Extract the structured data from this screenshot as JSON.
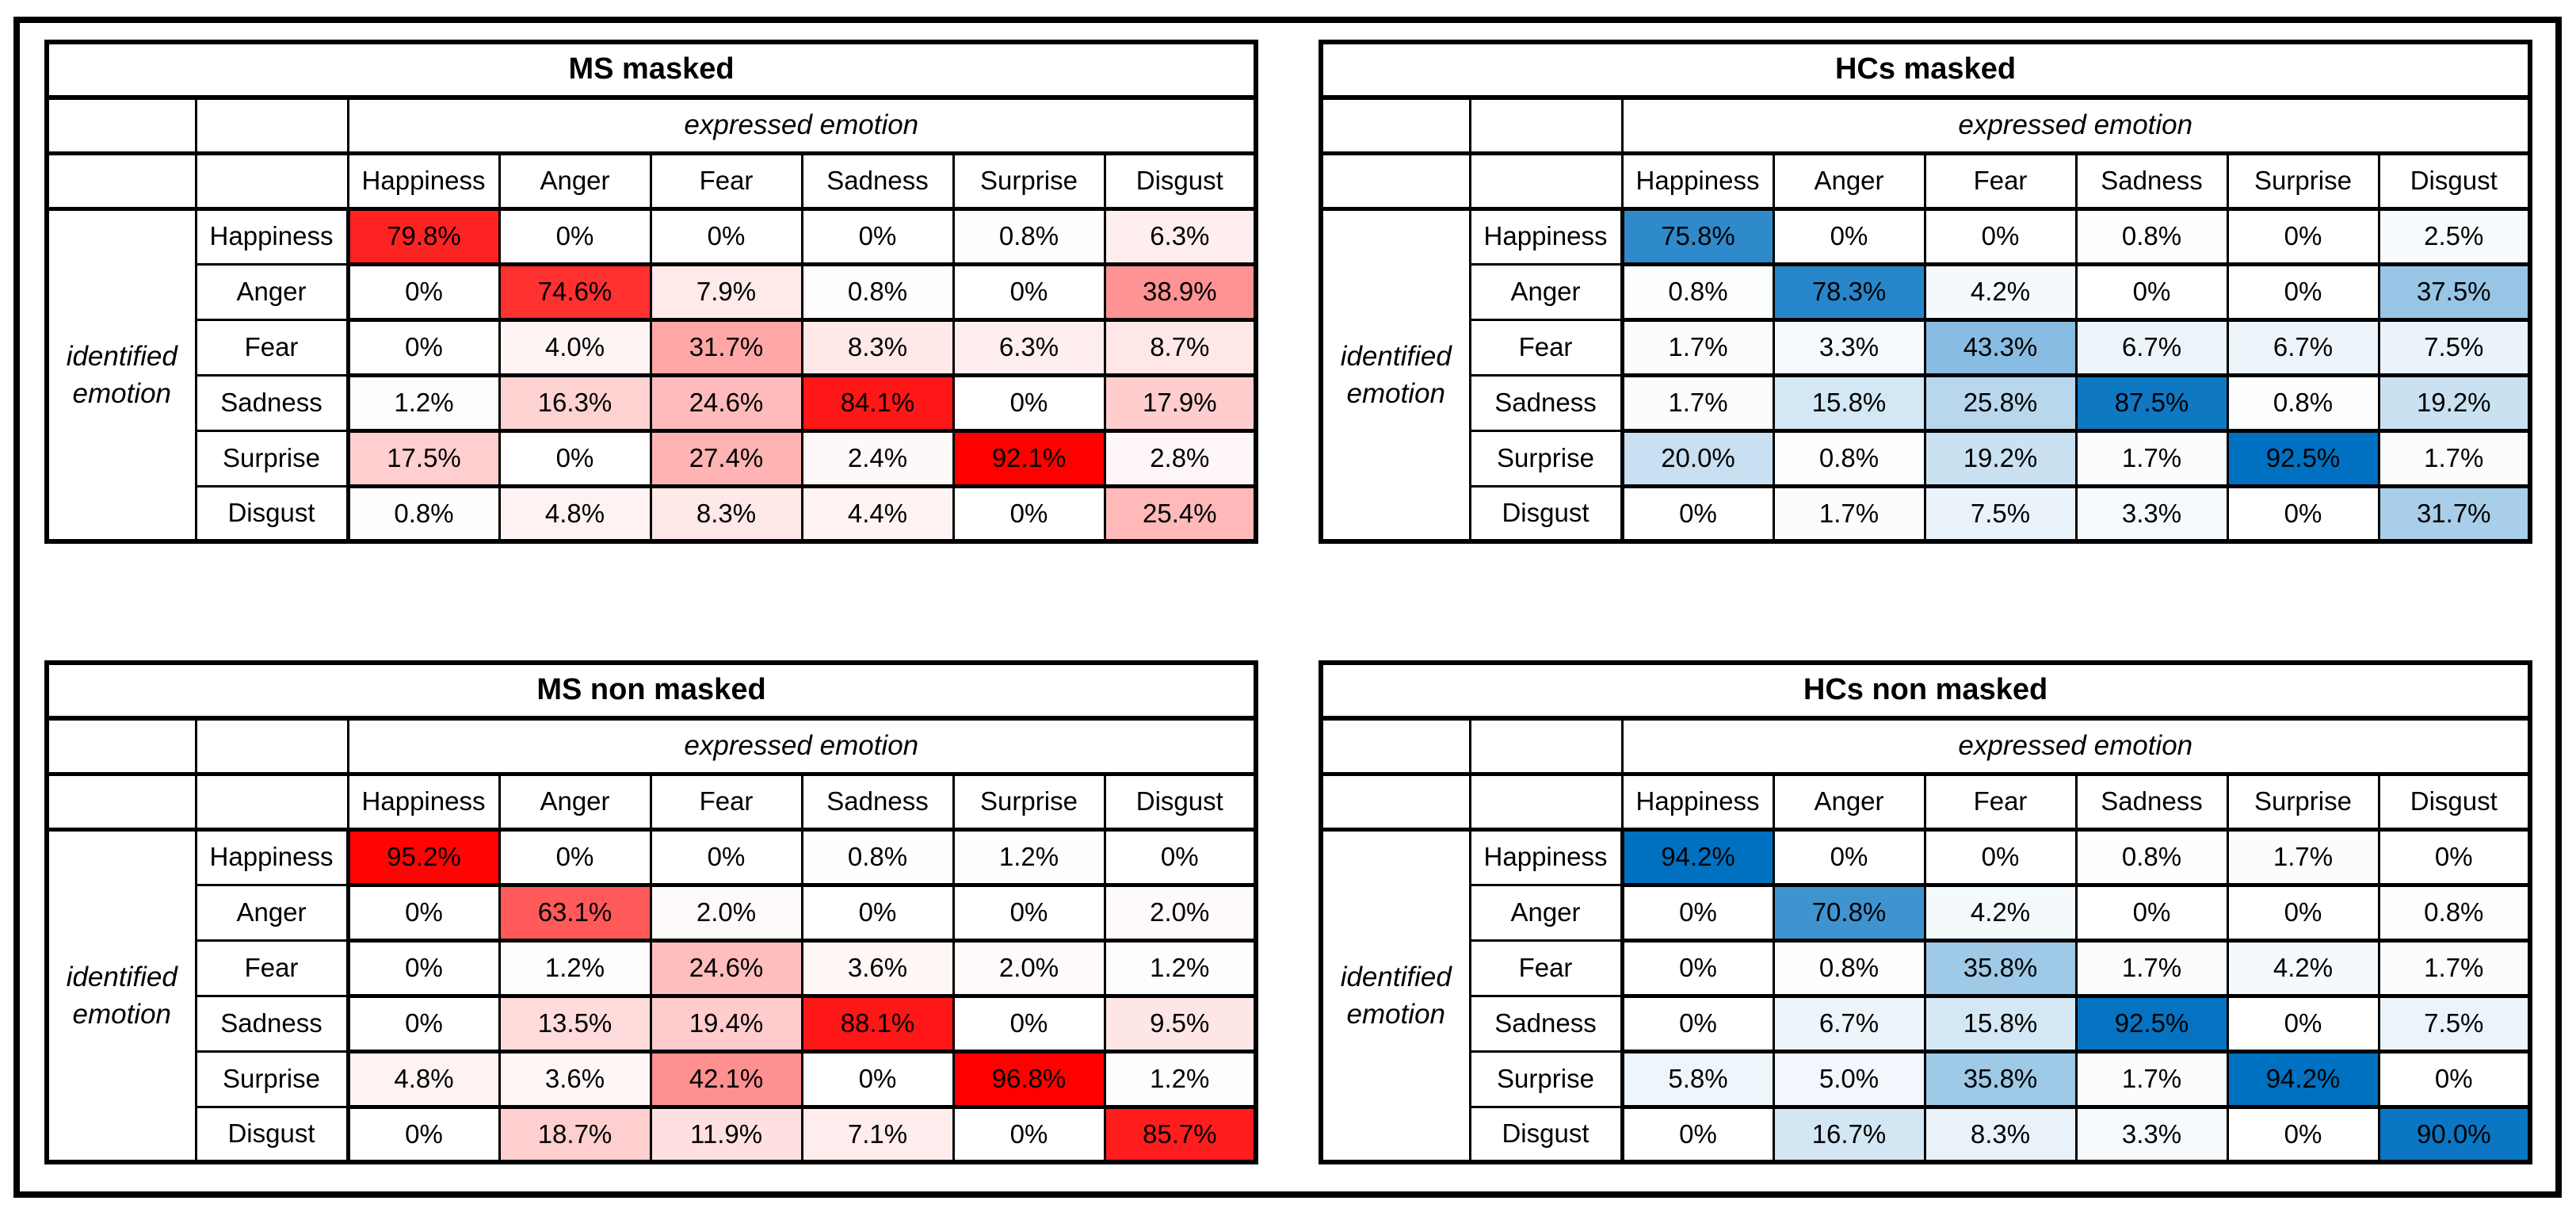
{
  "figure": {
    "background": "#FFFFFF",
    "frame_color": "#000000",
    "emotions": [
      "Happiness",
      "Anger",
      "Fear",
      "Sadness",
      "Surprise",
      "Disgust"
    ],
    "tables": [
      {
        "title": "MS masked",
        "top_axis_label": "expressed emotion",
        "side_axis_label": [
          "identified",
          "emotion"
        ],
        "accent_color": "#FF0000",
        "columns": [
          "Happiness",
          "Anger",
          "Fear",
          "Sadness",
          "Surprise",
          "Disgust"
        ],
        "rows": [
          {
            "label": "Happiness",
            "values": [
              "79.8%",
              "0%",
              "0%",
              "0%",
              "0.8%",
              "6.3%"
            ]
          },
          {
            "label": "Anger",
            "values": [
              "0%",
              "74.6%",
              "7.9%",
              "0.8%",
              "0%",
              "38.9%"
            ]
          },
          {
            "label": "Fear",
            "values": [
              "0%",
              "4.0%",
              "31.7%",
              "8.3%",
              "6.3%",
              "8.7%"
            ]
          },
          {
            "label": "Sadness",
            "values": [
              "1.2%",
              "16.3%",
              "24.6%",
              "84.1%",
              "0%",
              "17.9%"
            ]
          },
          {
            "label": "Surprise",
            "values": [
              "17.5%",
              "0%",
              "27.4%",
              "2.4%",
              "92.1%",
              "2.8%"
            ]
          },
          {
            "label": "Disgust",
            "values": [
              "0.8%",
              "4.8%",
              "8.3%",
              "4.4%",
              "0%",
              "25.4%"
            ]
          }
        ]
      },
      {
        "title": "HCs masked",
        "top_axis_label": "expressed emotion",
        "side_axis_label": [
          "identified",
          "emotion"
        ],
        "accent_color": "#0070C0",
        "columns": [
          "Happiness",
          "Anger",
          "Fear",
          "Sadness",
          "Surprise",
          "Disgust"
        ],
        "rows": [
          {
            "label": "Happiness",
            "values": [
              "75.8%",
              "0%",
              "0%",
              "0.8%",
              "0%",
              "2.5%"
            ]
          },
          {
            "label": "Anger",
            "values": [
              "0.8%",
              "78.3%",
              "4.2%",
              "0%",
              "0%",
              "37.5%"
            ]
          },
          {
            "label": "Fear",
            "values": [
              "1.7%",
              "3.3%",
              "43.3%",
              "6.7%",
              "6.7%",
              "7.5%"
            ]
          },
          {
            "label": "Sadness",
            "values": [
              "1.7%",
              "15.8%",
              "25.8%",
              "87.5%",
              "0.8%",
              "19.2%"
            ]
          },
          {
            "label": "Surprise",
            "values": [
              "20.0%",
              "0.8%",
              "19.2%",
              "1.7%",
              "92.5%",
              "1.7%"
            ]
          },
          {
            "label": "Disgust",
            "values": [
              "0%",
              "1.7%",
              "7.5%",
              "3.3%",
              "0%",
              "31.7%"
            ]
          }
        ]
      },
      {
        "title": "MS non masked",
        "top_axis_label": "expressed emotion",
        "side_axis_label": [
          "identified",
          "emotion"
        ],
        "accent_color": "#FF0000",
        "columns": [
          "Happiness",
          "Anger",
          "Fear",
          "Sadness",
          "Surprise",
          "Disgust"
        ],
        "rows": [
          {
            "label": "Happiness",
            "values": [
              "95.2%",
              "0%",
              "0%",
              "0.8%",
              "1.2%",
              "0%"
            ]
          },
          {
            "label": "Anger",
            "values": [
              "0%",
              "63.1%",
              "2.0%",
              "0%",
              "0%",
              "2.0%"
            ]
          },
          {
            "label": "Fear",
            "values": [
              "0%",
              "1.2%",
              "24.6%",
              "3.6%",
              "2.0%",
              "1.2%"
            ]
          },
          {
            "label": "Sadness",
            "values": [
              "0%",
              "13.5%",
              "19.4%",
              "88.1%",
              "0%",
              "9.5%"
            ]
          },
          {
            "label": "Surprise",
            "values": [
              "4.8%",
              "3.6%",
              "42.1%",
              "0%",
              "96.8%",
              "1.2%"
            ]
          },
          {
            "label": "Disgust",
            "values": [
              "0%",
              "18.7%",
              "11.9%",
              "7.1%",
              "0%",
              "85.7%"
            ]
          }
        ]
      },
      {
        "title": "HCs non masked",
        "top_axis_label": "expressed emotion",
        "side_axis_label": [
          "identified",
          "emotion"
        ],
        "accent_color": "#0070C0",
        "columns": [
          "Happiness",
          "Anger",
          "Fear",
          "Sadness",
          "Surprise",
          "Disgust"
        ],
        "rows": [
          {
            "label": "Happiness",
            "values": [
              "94.2%",
              "0%",
              "0%",
              "0.8%",
              "1.7%",
              "0%"
            ]
          },
          {
            "label": "Anger",
            "values": [
              "0%",
              "70.8%",
              "4.2%",
              "0%",
              "0%",
              "0.8%"
            ]
          },
          {
            "label": "Fear",
            "values": [
              "0%",
              "0.8%",
              "35.8%",
              "1.7%",
              "4.2%",
              "1.7%"
            ]
          },
          {
            "label": "Sadness",
            "values": [
              "0%",
              "6.7%",
              "15.8%",
              "92.5%",
              "0%",
              "7.5%"
            ]
          },
          {
            "label": "Surprise",
            "values": [
              "5.8%",
              "5.0%",
              "35.8%",
              "1.7%",
              "94.2%",
              "0%"
            ]
          },
          {
            "label": "Disgust",
            "values": [
              "0%",
              "16.7%",
              "8.3%",
              "3.3%",
              "0%",
              "90.0%"
            ]
          }
        ]
      }
    ]
  },
  "chart_data": [
    {
      "type": "heatmap",
      "title": "MS masked",
      "xlabel": "expressed emotion",
      "ylabel": "identified emotion",
      "x_categories": [
        "Happiness",
        "Anger",
        "Fear",
        "Sadness",
        "Surprise",
        "Disgust"
      ],
      "y_categories": [
        "Happiness",
        "Anger",
        "Fear",
        "Sadness",
        "Surprise",
        "Disgust"
      ],
      "values_percent": [
        [
          79.8,
          0,
          0,
          0,
          0.8,
          6.3
        ],
        [
          0,
          74.6,
          7.9,
          0.8,
          0,
          38.9
        ],
        [
          0,
          4.0,
          31.7,
          8.3,
          6.3,
          8.7
        ],
        [
          1.2,
          16.3,
          24.6,
          84.1,
          0,
          17.9
        ],
        [
          17.5,
          0,
          27.4,
          2.4,
          92.1,
          2.8
        ],
        [
          0.8,
          4.8,
          8.3,
          4.4,
          0,
          25.4
        ]
      ],
      "colormap": "white-to-red",
      "max_color": "#FF0000",
      "grid": true,
      "legend": false
    },
    {
      "type": "heatmap",
      "title": "HCs masked",
      "xlabel": "expressed emotion",
      "ylabel": "identified emotion",
      "x_categories": [
        "Happiness",
        "Anger",
        "Fear",
        "Sadness",
        "Surprise",
        "Disgust"
      ],
      "y_categories": [
        "Happiness",
        "Anger",
        "Fear",
        "Sadness",
        "Surprise",
        "Disgust"
      ],
      "values_percent": [
        [
          75.8,
          0,
          0,
          0.8,
          0,
          2.5
        ],
        [
          0.8,
          78.3,
          4.2,
          0,
          0,
          37.5
        ],
        [
          1.7,
          3.3,
          43.3,
          6.7,
          6.7,
          7.5
        ],
        [
          1.7,
          15.8,
          25.8,
          87.5,
          0.8,
          19.2
        ],
        [
          20.0,
          0.8,
          19.2,
          1.7,
          92.5,
          1.7
        ],
        [
          0,
          1.7,
          7.5,
          3.3,
          0,
          31.7
        ]
      ],
      "colormap": "white-to-blue",
      "max_color": "#0070C0",
      "grid": true,
      "legend": false
    },
    {
      "type": "heatmap",
      "title": "MS non masked",
      "xlabel": "expressed emotion",
      "ylabel": "identified emotion",
      "x_categories": [
        "Happiness",
        "Anger",
        "Fear",
        "Sadness",
        "Surprise",
        "Disgust"
      ],
      "y_categories": [
        "Happiness",
        "Anger",
        "Fear",
        "Sadness",
        "Surprise",
        "Disgust"
      ],
      "values_percent": [
        [
          95.2,
          0,
          0,
          0.8,
          1.2,
          0
        ],
        [
          0,
          63.1,
          2.0,
          0,
          0,
          2.0
        ],
        [
          0,
          1.2,
          24.6,
          3.6,
          2.0,
          1.2
        ],
        [
          0,
          13.5,
          19.4,
          88.1,
          0,
          9.5
        ],
        [
          4.8,
          3.6,
          42.1,
          0,
          96.8,
          1.2
        ],
        [
          0,
          18.7,
          11.9,
          7.1,
          0,
          85.7
        ]
      ],
      "colormap": "white-to-red",
      "max_color": "#FF0000",
      "grid": true,
      "legend": false
    },
    {
      "type": "heatmap",
      "title": "HCs non masked",
      "xlabel": "expressed emotion",
      "ylabel": "identified emotion",
      "x_categories": [
        "Happiness",
        "Anger",
        "Fear",
        "Sadness",
        "Surprise",
        "Disgust"
      ],
      "y_categories": [
        "Happiness",
        "Anger",
        "Fear",
        "Sadness",
        "Surprise",
        "Disgust"
      ],
      "values_percent": [
        [
          94.2,
          0,
          0,
          0.8,
          1.7,
          0
        ],
        [
          0,
          70.8,
          4.2,
          0,
          0,
          0.8
        ],
        [
          0,
          0.8,
          35.8,
          1.7,
          4.2,
          1.7
        ],
        [
          0,
          6.7,
          15.8,
          92.5,
          0,
          7.5
        ],
        [
          5.8,
          5.0,
          35.8,
          1.7,
          94.2,
          0
        ],
        [
          0,
          16.7,
          8.3,
          3.3,
          0,
          90.0
        ]
      ],
      "colormap": "white-to-blue",
      "max_color": "#0070C0",
      "grid": true,
      "legend": false
    }
  ]
}
